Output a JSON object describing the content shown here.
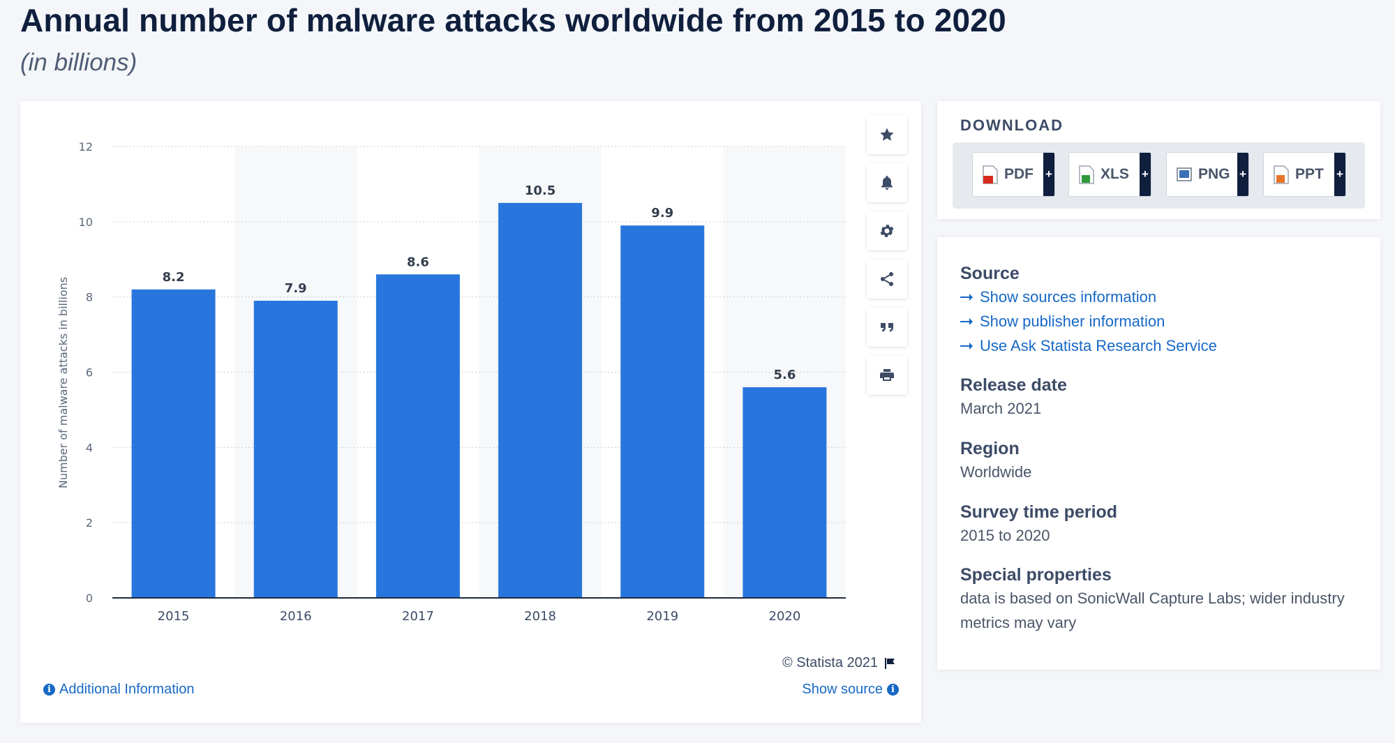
{
  "header": {
    "title": "Annual number of malware attacks worldwide from 2015 to 2020",
    "subtitle": "(in billions)"
  },
  "chart_data": {
    "type": "bar",
    "categories": [
      "2015",
      "2016",
      "2017",
      "2018",
      "2019",
      "2020"
    ],
    "values": [
      8.2,
      7.9,
      8.6,
      10.5,
      9.9,
      5.6
    ],
    "ylabel": "Number of malware attacks in billions",
    "xlabel": "",
    "ylim": [
      0,
      12
    ],
    "yticks": [
      "0",
      "2",
      "4",
      "6",
      "8",
      "10",
      "12"
    ],
    "grid": true,
    "bar_color": "#2876dd",
    "data_labels": [
      "8.2",
      "7.9",
      "8.6",
      "10.5",
      "9.9",
      "5.6"
    ]
  },
  "toolbar": {
    "icons": [
      "star-icon",
      "bell-icon",
      "gear-icon",
      "share-icon",
      "quote-icon",
      "print-icon"
    ]
  },
  "chart_footer": {
    "copyright": "© Statista 2021",
    "additional_info": "Additional Information",
    "show_source": "Show source"
  },
  "download": {
    "title": "DOWNLOAD",
    "buttons": [
      {
        "label": "PDF",
        "color": "#d52b1e"
      },
      {
        "label": "XLS",
        "color": "#2e9b3a"
      },
      {
        "label": "PNG",
        "color": "#3b6fb6"
      },
      {
        "label": "PPT",
        "color": "#e8742a"
      }
    ],
    "plus": "+"
  },
  "info": {
    "source_title": "Source",
    "source_links": [
      "Show sources information",
      "Show publisher information",
      "Use Ask Statista Research Service"
    ],
    "release_title": "Release date",
    "release_value": "March 2021",
    "region_title": "Region",
    "region_value": "Worldwide",
    "period_title": "Survey time period",
    "period_value": "2015 to 2020",
    "special_title": "Special properties",
    "special_value": "data is based on SonicWall Capture Labs; wider industry metrics may vary"
  }
}
